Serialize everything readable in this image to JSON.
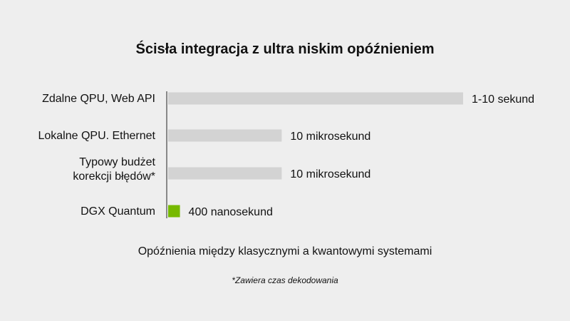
{
  "chart_data": {
    "type": "bar",
    "orientation": "horizontal",
    "title": "Ścisła integracja z ultra niskim opóźnieniem",
    "xlabel": "Opóźnienia między klasycznymi a kwantowymi systemami",
    "footnote": "*Zawiera czas dekodowania",
    "categories": [
      [
        "Zdalne QPU, Web API"
      ],
      [
        "Lokalne QPU. Ethernet"
      ],
      [
        "Typowy budżet",
        "korekcji błędów*"
      ],
      [
        "DGX Quantum"
      ]
    ],
    "values": [
      1.0,
      0.385,
      0.385,
      0.04
    ],
    "value_labels": [
      "1-10 sekund",
      "10 mikrosekund",
      "10 mikrosekund",
      "400 nanosekund"
    ],
    "bar_colors": [
      "#d3d3d3",
      "#d3d3d3",
      "#d3d3d3",
      "#76b900"
    ],
    "grid": false,
    "legend": "none"
  }
}
